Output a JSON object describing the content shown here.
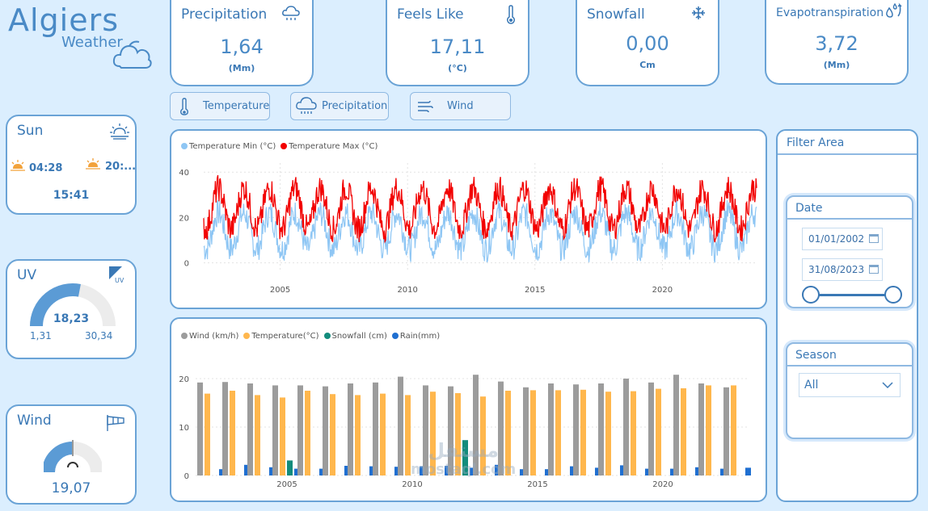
{
  "app": {
    "title": "Algiers",
    "subtitle": "Weather"
  },
  "kpis": {
    "precipitation": {
      "title": "Precipitation",
      "value": "1,64",
      "unit": "(Mm)"
    },
    "feels_like": {
      "title": "Feels Like",
      "value": "17,11",
      "unit": "(°C)"
    },
    "snowfall": {
      "title": "Snowfall",
      "value": "0,00",
      "unit": "Cm"
    },
    "evapotranspiration": {
      "title": "Evapotranspiration",
      "value": "3,72",
      "unit": "(Mm)"
    }
  },
  "nav": {
    "temperature": "Temperature",
    "precipitation": "Precipitation",
    "wind": "Wind"
  },
  "sun": {
    "title": "Sun",
    "sunrise": "04:28",
    "sunset": "20:...",
    "daylight": "15:41"
  },
  "uv": {
    "title": "UV",
    "value": "18,23",
    "min": "1,31",
    "max": "30,34",
    "icon_label": "UV",
    "fraction": 0.56
  },
  "wind": {
    "title": "Wind",
    "value": "19,07",
    "fraction": 0.5
  },
  "filter": {
    "title": "Filter Area",
    "date": {
      "title": "Date",
      "start": "01/01/2002",
      "end": "31/08/2023"
    },
    "season": {
      "title": "Season",
      "selected": "All"
    }
  },
  "watermark": {
    "arabic": "مستقل",
    "latin": "mostaql.com"
  },
  "colors": {
    "accent": "#4a8ac6",
    "temp_min": "#8ec6f4",
    "temp_max": "#f20000",
    "wind": "#9c9c9c",
    "temperature": "#ffb74d",
    "snowfall": "#138c7c",
    "rain": "#1f6fd1"
  },
  "chart_data": [
    {
      "type": "line",
      "title": "",
      "series": [
        {
          "name": "Temperature Min (°C)",
          "color": "#8ec6f4",
          "mean": 14,
          "amplitude": 8
        },
        {
          "name": "Temperature Max (°C)",
          "color": "#f20000",
          "mean": 24,
          "amplitude": 9
        }
      ],
      "x_ticks": [
        "2005",
        "2010",
        "2015",
        "2020"
      ],
      "x_range": [
        2002,
        2023.7
      ],
      "y_ticks": [
        "0",
        "20",
        "40"
      ],
      "ylim": [
        -3,
        44
      ]
    },
    {
      "type": "bar",
      "title": "",
      "categories": [
        "2002",
        "2003",
        "2004",
        "2005",
        "2006",
        "2007",
        "2008",
        "2009",
        "2010",
        "2011",
        "2012",
        "2013",
        "2014",
        "2015",
        "2016",
        "2017",
        "2018",
        "2019",
        "2020",
        "2021",
        "2022",
        "2023"
      ],
      "series": [
        {
          "name": "Wind (km/h)",
          "color": "#9c9c9c",
          "values": [
            19.2,
            19.3,
            19.0,
            18.6,
            18.6,
            18.4,
            19.0,
            19.2,
            20.4,
            18.6,
            18.4,
            20.8,
            19.4,
            18.2,
            19.0,
            18.8,
            19.0,
            20.0,
            19.2,
            20.8,
            19.0,
            18.2
          ]
        },
        {
          "name": "Temperature(°C)",
          "color": "#ffb74d",
          "values": [
            16.9,
            17.5,
            16.6,
            16.1,
            17.5,
            16.8,
            16.6,
            16.9,
            16.6,
            17.3,
            17.0,
            16.3,
            17.5,
            17.6,
            17.6,
            17.7,
            17.3,
            17.4,
            17.9,
            18.0,
            18.6,
            18.6
          ]
        },
        {
          "name": "Snowfall (cm)",
          "color": "#138c7c",
          "values": [
            0,
            0,
            0,
            3.1,
            0,
            0,
            0,
            0,
            0,
            0,
            7.3,
            0,
            0,
            0,
            0,
            0,
            0,
            0,
            0,
            0,
            0,
            0
          ]
        },
        {
          "name": "Rain(mm)",
          "color": "#1f6fd1",
          "values": [
            1.3,
            2.2,
            1.7,
            1.4,
            1.4,
            2.0,
            1.9,
            1.8,
            1.9,
            2.0,
            1.6,
            2.2,
            1.3,
            1.3,
            1.9,
            1.6,
            2.1,
            1.4,
            1.4,
            1.7,
            1.4,
            1.6
          ]
        }
      ],
      "x_ticks": [
        "2005",
        "2010",
        "2015",
        "2020"
      ],
      "y_ticks": [
        "0",
        "10",
        "20"
      ],
      "ylim": [
        0,
        23
      ]
    }
  ]
}
